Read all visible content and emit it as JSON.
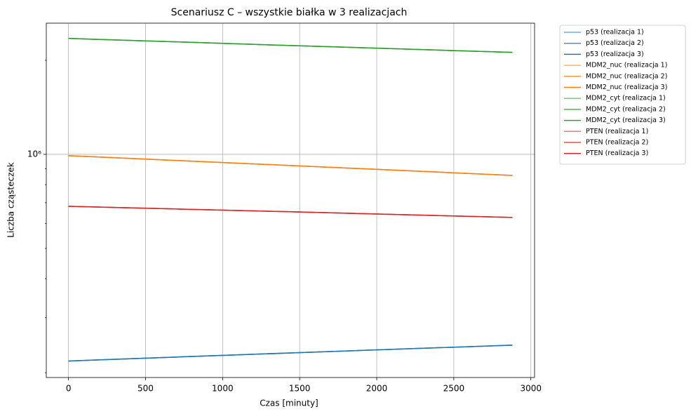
{
  "chart_data": {
    "type": "line",
    "title": "Scenariusz C – wszystkie białka w 3 realizacjach",
    "xlabel": "Czas [minuty]",
    "ylabel": "Liczba cząsteczek",
    "x": [
      0,
      720,
      1440,
      2160,
      2880
    ],
    "xlim": [
      -144,
      3024
    ],
    "xticks": [
      0,
      500,
      1000,
      1500,
      2000,
      2500,
      3000
    ],
    "ylim": [
      193000,
      2630000
    ],
    "yscale": "log",
    "yticks": [
      {
        "value": 1000000,
        "label": "10⁶"
      }
    ],
    "yminorticks": [
      200000,
      300000,
      400000,
      500000,
      600000,
      700000,
      800000,
      900000,
      2000000
    ],
    "grid": true,
    "legend": "outside upper right",
    "series": [
      {
        "name": "p53 (realizacja 1)",
        "color": "#1f77b499",
        "values": [
          218000,
          224600,
          231300,
          238100,
          245000
        ]
      },
      {
        "name": "p53 (realizacja 2)",
        "color": "#1f77b4cc",
        "values": [
          218000,
          224600,
          231300,
          238100,
          245000
        ]
      },
      {
        "name": "p53 (realizacja 3)",
        "color": "#1f77b4",
        "values": [
          218000,
          224600,
          231300,
          238100,
          245000
        ]
      },
      {
        "name": "MDM2_nuc (realizacja 1)",
        "color": "#ff7f0e99",
        "values": [
          990000,
          955000,
          921000,
          888000,
          856000
        ]
      },
      {
        "name": "MDM2_nuc (realizacja 2)",
        "color": "#ff7f0ecc",
        "values": [
          990000,
          955000,
          921000,
          888000,
          856000
        ]
      },
      {
        "name": "MDM2_nuc (realizacja 3)",
        "color": "#ff7f0e",
        "values": [
          990000,
          955000,
          921000,
          888000,
          856000
        ]
      },
      {
        "name": "MDM2_cyt (realizacja 1)",
        "color": "#2ca02c99",
        "values": [
          2350000,
          2290000,
          2230000,
          2175000,
          2120000
        ]
      },
      {
        "name": "MDM2_cyt (realizacja 2)",
        "color": "#2ca02ccc",
        "values": [
          2350000,
          2290000,
          2230000,
          2175000,
          2120000
        ]
      },
      {
        "name": "MDM2_cyt (realizacja 3)",
        "color": "#2ca02c",
        "values": [
          2350000,
          2290000,
          2230000,
          2175000,
          2120000
        ]
      },
      {
        "name": "PTEN (realizacja 1)",
        "color": "#d6272899",
        "values": [
          682000,
          668000,
          655000,
          641000,
          628000
        ]
      },
      {
        "name": "PTEN (realizacja 2)",
        "color": "#d62728cc",
        "values": [
          682000,
          668000,
          655000,
          641000,
          628000
        ]
      },
      {
        "name": "PTEN (realizacja 3)",
        "color": "#d62728",
        "values": [
          682000,
          668000,
          655000,
          641000,
          628000
        ]
      }
    ]
  }
}
